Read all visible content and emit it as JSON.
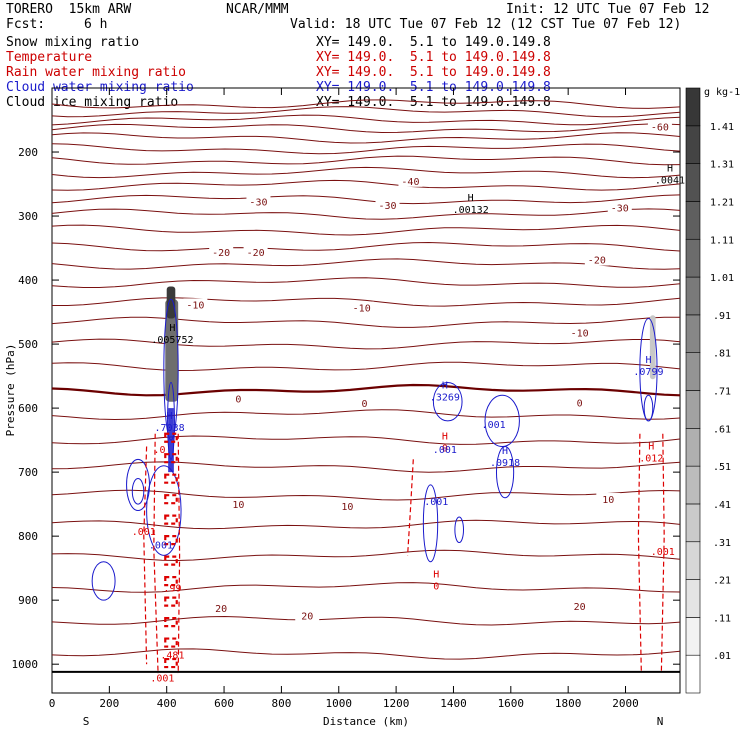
{
  "header": {
    "model": "TORERO  15km ARW",
    "org": "NCAR/MMM",
    "init": "Init: 12 UTC Tue 07 Feb 12",
    "fcst_label": "Fcst:",
    "fcst_value": "6 h",
    "valid": "Valid: 18 UTC Tue 07 Feb 12 (12 CST Tue 07 Feb 12)"
  },
  "legend": [
    {
      "name": "Snow mixing ratio",
      "color": "#000000",
      "xy": "XY= 149.0.  5.1 to 149.0.149.8",
      "xy_color": "#000000"
    },
    {
      "name": "Temperature",
      "color": "#cc0000",
      "xy": "XY= 149.0.  5.1 to 149.0.149.8",
      "xy_color": "#cc0000"
    },
    {
      "name": "Rain water mixing ratio",
      "color": "#cc0000",
      "xy": "XY= 149.0.  5.1 to 149.0.149.8",
      "xy_color": "#cc0000"
    },
    {
      "name": "Cloud water mixing ratio",
      "color": "#1a1acc",
      "xy": "XY= 149.0.  5.1 to 149.0.149.8",
      "xy_color": "#1a1acc"
    },
    {
      "name": "Cloud ice mixing ratio",
      "color": "#000000",
      "xy": "XY= 149.0.  5.1 to 149.0.149.8",
      "xy_color": "#000000"
    }
  ],
  "colors": {
    "temperature": "#7a1010",
    "freezing": "#6b0000",
    "rain": "#dd0000",
    "cloud_water": "#1a1acc",
    "ice": "#000000"
  },
  "chart_data": {
    "type": "contour",
    "title": "Vertical cross section",
    "xlabel": "Distance (km)",
    "ylabel": "Pressure (hPa)",
    "x_ticks": [
      0,
      200,
      400,
      600,
      800,
      1000,
      1200,
      1400,
      1600,
      1800,
      2000
    ],
    "y_ticks": [
      200,
      300,
      400,
      500,
      600,
      700,
      800,
      900,
      1000
    ],
    "xlim": [
      0,
      2190
    ],
    "ylim": [
      1045,
      100
    ],
    "left_end_label": "S",
    "right_end_label": "N",
    "temperature_labels": [
      {
        "value": "-60",
        "x": 2120,
        "p": 160
      },
      {
        "value": "-40",
        "x": 1250,
        "p": 245
      },
      {
        "value": "-30",
        "x": 720,
        "p": 277
      },
      {
        "value": "-30",
        "x": 1170,
        "p": 283
      },
      {
        "value": "-30",
        "x": 1980,
        "p": 287
      },
      {
        "value": "-20",
        "x": 590,
        "p": 356
      },
      {
        "value": "-20",
        "x": 710,
        "p": 356
      },
      {
        "value": "-20",
        "x": 1900,
        "p": 368
      },
      {
        "value": "-10",
        "x": 500,
        "p": 438
      },
      {
        "value": "-10",
        "x": 1080,
        "p": 443
      },
      {
        "value": "-10",
        "x": 1840,
        "p": 482
      },
      {
        "value": "0",
        "x": 650,
        "p": 585
      },
      {
        "value": "0",
        "x": 1090,
        "p": 592
      },
      {
        "value": "0",
        "x": 1840,
        "p": 591
      },
      {
        "value": "10",
        "x": 650,
        "p": 750
      },
      {
        "value": "10",
        "x": 1030,
        "p": 753
      },
      {
        "value": "10",
        "x": 1940,
        "p": 742
      },
      {
        "value": "20",
        "x": 590,
        "p": 912
      },
      {
        "value": "20",
        "x": 890,
        "p": 924
      },
      {
        "value": "20",
        "x": 1840,
        "p": 909
      }
    ],
    "extrema_labels": [
      {
        "letter": "H",
        "value": ".00132",
        "x": 1460,
        "p": 292,
        "color": "#000000"
      },
      {
        "letter": "H",
        "value": ".0041",
        "x": 2155,
        "p": 246,
        "color": "#000000"
      },
      {
        "letter": "H",
        "value": ".005752",
        "x": 420,
        "p": 495,
        "color": "#000000"
      },
      {
        "letter": "H",
        "value": ".3269",
        "x": 1370,
        "p": 585,
        "color": "#1a1acc"
      },
      {
        "letter": "H",
        "value": ".0799",
        "x": 2080,
        "p": 545,
        "color": "#1a1acc"
      },
      {
        "letter": "H",
        "value": ".0918",
        "x": 1580,
        "p": 687,
        "color": "#1a1acc"
      },
      {
        "letter": "H",
        "value": ".7038",
        "x": 410,
        "p": 633,
        "color": "#1a1acc"
      },
      {
        "letter": "H",
        "value": ".012",
        "x": 2090,
        "p": 680,
        "color": "#dd0000"
      },
      {
        "letter": "H",
        "value": "0",
        "x": 1340,
        "p": 880,
        "color": "#dd0000"
      },
      {
        "letter": "H",
        "value": "0",
        "x": 1370,
        "p": 665,
        "color": "#dd0000"
      }
    ],
    "mixing_ratio_labels": [
      {
        "value": ".001",
        "x": 1370,
        "p": 664,
        "color": "#1a1acc"
      },
      {
        "value": ".001",
        "x": 1540,
        "p": 625,
        "color": "#1a1acc"
      },
      {
        "value": ".001",
        "x": 1340,
        "p": 745,
        "color": "#1a1acc"
      },
      {
        "value": ".001",
        "x": 320,
        "p": 792,
        "color": "#dd0000"
      },
      {
        "value": ".001",
        "x": 380,
        "p": 813,
        "color": "#1a1acc"
      },
      {
        "value": ".001",
        "x": 2130,
        "p": 823,
        "color": "#dd0000"
      },
      {
        "value": ".001",
        "x": 385,
        "p": 1021,
        "color": "#dd0000"
      },
      {
        "value": ".481",
        "x": 420,
        "p": 985,
        "color": "#dd0000"
      },
      {
        "value": ".0",
        "x": 375,
        "p": 664,
        "color": "#dd0000"
      },
      {
        "value": ".99",
        "x": 420,
        "p": 880,
        "color": "#dd0000"
      }
    ],
    "colorbar": {
      "unit": "g kg-1",
      "levels": [
        ".01",
        ".11",
        ".21",
        ".31",
        ".41",
        ".51",
        ".61",
        ".71",
        ".81",
        ".91",
        "1.01",
        "1.11",
        "1.21",
        "1.31",
        "1.41"
      ]
    }
  }
}
